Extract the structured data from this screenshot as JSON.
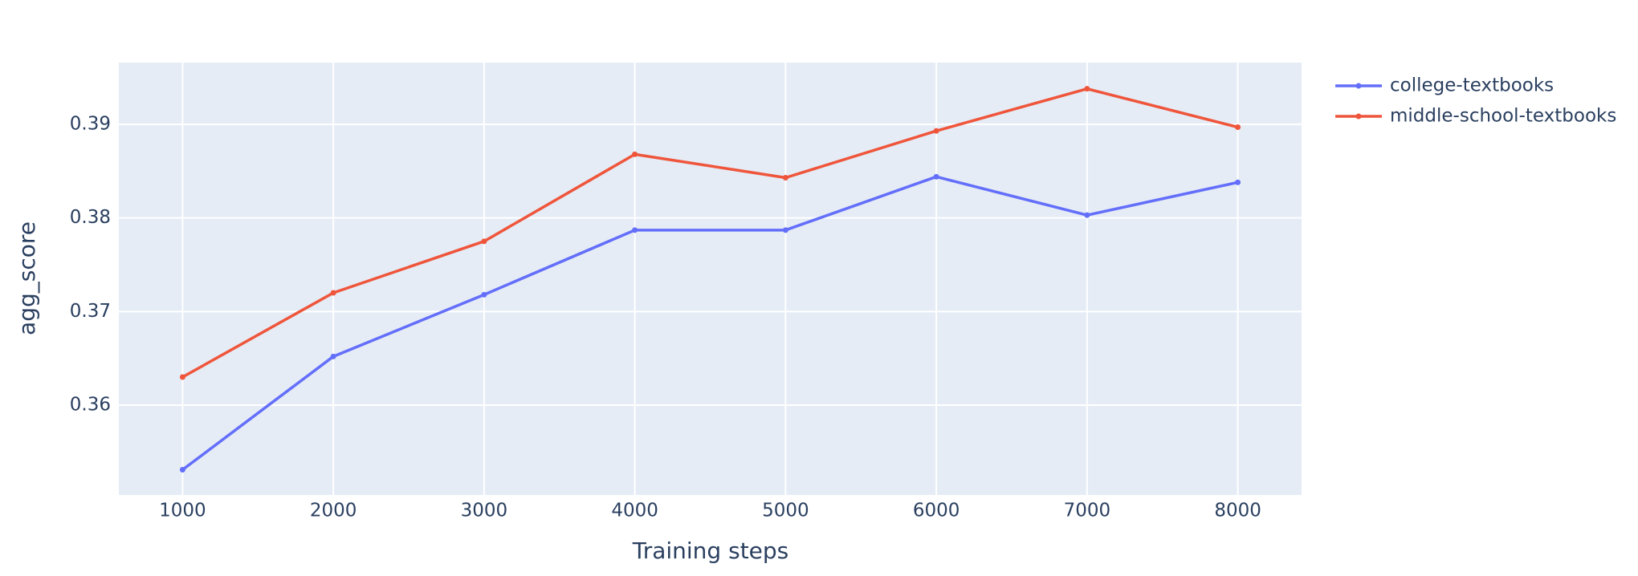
{
  "chart_data": {
    "type": "line",
    "x_label": "Training steps",
    "y_label": "agg_score",
    "x": [
      1000,
      2000,
      3000,
      4000,
      5000,
      6000,
      7000,
      8000
    ],
    "series": [
      {
        "name": "college-textbooks",
        "color": "#636efa",
        "values": [
          0.3531,
          0.3652,
          0.3718,
          0.3787,
          0.3787,
          0.3844,
          0.3803,
          0.3838
        ]
      },
      {
        "name": "middle-school-textbooks",
        "color": "#ef553b",
        "values": [
          0.363,
          0.372,
          0.3775,
          0.3868,
          0.3843,
          0.3893,
          0.3938,
          0.3897
        ]
      }
    ],
    "xlim": [
      577,
      8423
    ],
    "xticks": [
      1000,
      2000,
      3000,
      4000,
      5000,
      6000,
      7000,
      8000
    ],
    "ylim": [
      0.3504,
      0.3966
    ],
    "yticks": [
      0.36,
      0.37,
      0.38,
      0.39
    ],
    "grid": true,
    "background": "#e5ecf6",
    "legend": "right"
  }
}
